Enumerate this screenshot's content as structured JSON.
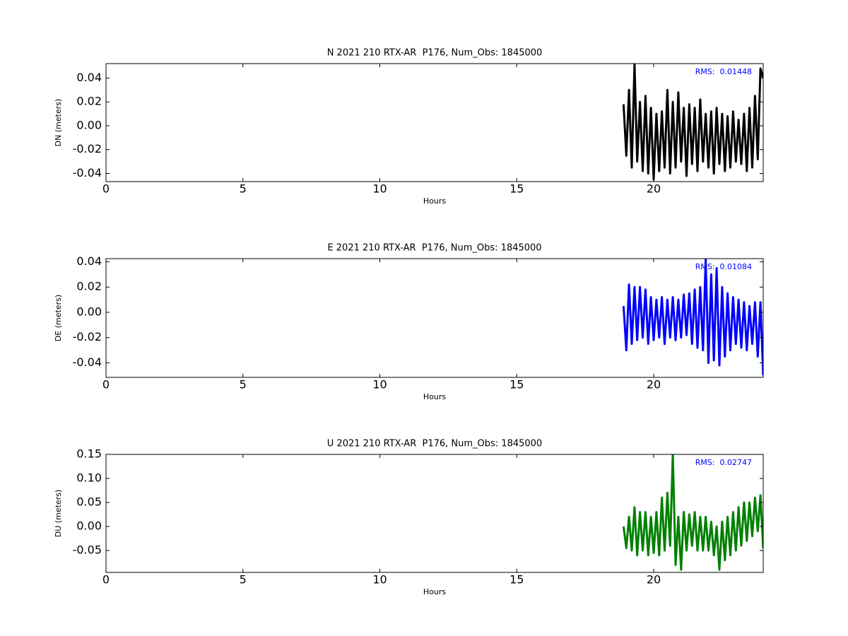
{
  "chart_data": [
    {
      "type": "line",
      "title": "N 2021 210 RTX-AR  P176, Num_Obs: 1845000",
      "x_label": "Hours",
      "y_label": "DN (meters)",
      "annotation": "RMS:  0.01448",
      "annotation_color": "#0000ff",
      "color": "#000000",
      "x": [
        18.9,
        19.0,
        19.1,
        19.2,
        19.3,
        19.4,
        19.5,
        19.6,
        19.7,
        19.8,
        19.9,
        20.0,
        20.1,
        20.2,
        20.3,
        20.4,
        20.5,
        20.6,
        20.7,
        20.8,
        20.9,
        21.0,
        21.1,
        21.2,
        21.3,
        21.4,
        21.5,
        21.6,
        21.7,
        21.8,
        21.9,
        22.0,
        22.1,
        22.2,
        22.3,
        22.4,
        22.5,
        22.6,
        22.7,
        22.8,
        22.9,
        23.0,
        23.1,
        23.2,
        23.3,
        23.4,
        23.5,
        23.6,
        23.7,
        23.8,
        23.9,
        24.0
      ],
      "values": [
        0.018,
        -0.025,
        0.03,
        -0.035,
        0.052,
        -0.03,
        0.02,
        -0.038,
        0.025,
        -0.04,
        0.015,
        -0.045,
        0.01,
        -0.038,
        0.012,
        -0.035,
        0.03,
        -0.04,
        0.02,
        -0.035,
        0.028,
        -0.03,
        0.015,
        -0.042,
        0.018,
        -0.032,
        0.015,
        -0.038,
        0.022,
        -0.03,
        0.01,
        -0.035,
        0.012,
        -0.04,
        0.015,
        -0.032,
        0.01,
        -0.038,
        0.008,
        -0.035,
        0.012,
        -0.03,
        0.005,
        -0.032,
        0.01,
        -0.038,
        0.015,
        -0.035,
        0.025,
        -0.028,
        0.048,
        0.04
      ],
      "xlim": [
        0,
        24
      ],
      "xticks": [
        0,
        5,
        10,
        15,
        20
      ],
      "ylim": [
        -0.0468,
        0.0521
      ],
      "yticks": [
        -0.04,
        -0.02,
        {
          "value": 0,
          "label": "0.00"
        },
        0.02,
        0.04
      ]
    },
    {
      "type": "line",
      "title": "E 2021 210 RTX-AR  P176, Num_Obs: 1845000",
      "x_label": "Hours",
      "y_label": "DE (meters)",
      "annotation": "RMS:  0.01084",
      "annotation_color": "#0000ff",
      "color": "#0000ff",
      "x": [
        18.9,
        19.0,
        19.1,
        19.2,
        19.3,
        19.4,
        19.5,
        19.6,
        19.7,
        19.8,
        19.9,
        20.0,
        20.1,
        20.2,
        20.3,
        20.4,
        20.5,
        20.6,
        20.7,
        20.8,
        20.9,
        21.0,
        21.1,
        21.2,
        21.3,
        21.4,
        21.5,
        21.6,
        21.7,
        21.8,
        21.9,
        22.0,
        22.1,
        22.2,
        22.3,
        22.4,
        22.5,
        22.6,
        22.7,
        22.8,
        22.9,
        23.0,
        23.1,
        23.2,
        23.3,
        23.4,
        23.5,
        23.6,
        23.7,
        23.8,
        23.9,
        24.0
      ],
      "values": [
        0.005,
        -0.03,
        0.022,
        -0.025,
        0.02,
        -0.022,
        0.02,
        -0.02,
        0.018,
        -0.025,
        0.012,
        -0.022,
        0.01,
        -0.02,
        0.012,
        -0.025,
        0.01,
        -0.02,
        0.012,
        -0.022,
        0.01,
        -0.02,
        0.014,
        -0.018,
        0.015,
        -0.025,
        0.018,
        -0.028,
        0.02,
        -0.03,
        0.042,
        -0.04,
        0.03,
        -0.038,
        0.035,
        -0.042,
        0.02,
        -0.035,
        0.015,
        -0.03,
        0.012,
        -0.025,
        0.01,
        -0.028,
        0.008,
        -0.03,
        0.005,
        -0.025,
        0.008,
        -0.035,
        0.008,
        -0.05
      ],
      "xlim": [
        0,
        24
      ],
      "xticks": [
        0,
        5,
        10,
        15,
        20
      ],
      "ylim": [
        -0.0515,
        0.0425
      ],
      "yticks": [
        -0.04,
        -0.02,
        {
          "value": 0,
          "label": "0.00"
        },
        0.02,
        0.04
      ]
    },
    {
      "type": "line",
      "title": "U 2021 210 RTX-AR  P176, Num_Obs: 1845000",
      "x_label": "Hours",
      "y_label": "DU (meters)",
      "annotation": "RMS:  0.02747",
      "annotation_color": "#0000ff",
      "color": "#008000",
      "x": [
        18.9,
        19.0,
        19.1,
        19.2,
        19.3,
        19.4,
        19.5,
        19.6,
        19.7,
        19.8,
        19.9,
        20.0,
        20.1,
        20.2,
        20.3,
        20.4,
        20.5,
        20.6,
        20.7,
        20.8,
        20.9,
        21.0,
        21.1,
        21.2,
        21.3,
        21.4,
        21.5,
        21.6,
        21.7,
        21.8,
        21.9,
        22.0,
        22.1,
        22.2,
        22.3,
        22.4,
        22.5,
        22.6,
        22.7,
        22.8,
        22.9,
        23.0,
        23.1,
        23.2,
        23.3,
        23.4,
        23.5,
        23.6,
        23.7,
        23.8,
        23.9,
        24.0
      ],
      "values": [
        0.0,
        -0.045,
        0.02,
        -0.05,
        0.04,
        -0.06,
        0.03,
        -0.05,
        0.03,
        -0.06,
        0.02,
        -0.055,
        0.03,
        -0.06,
        0.06,
        -0.05,
        0.07,
        -0.04,
        0.15,
        -0.08,
        0.02,
        -0.09,
        0.03,
        -0.05,
        0.025,
        -0.04,
        0.03,
        -0.05,
        0.02,
        -0.05,
        0.02,
        -0.05,
        0.01,
        -0.06,
        0.0,
        -0.09,
        0.01,
        -0.07,
        0.02,
        -0.06,
        0.03,
        -0.05,
        0.04,
        -0.04,
        0.05,
        -0.03,
        0.05,
        -0.02,
        0.06,
        -0.01,
        0.065,
        -0.045
      ],
      "xlim": [
        0,
        24
      ],
      "xticks": [
        0,
        5,
        10,
        15,
        20
      ],
      "ylim": [
        -0.0956,
        0.15
      ],
      "yticks": [
        -0.05,
        {
          "value": 0,
          "label": "0.00"
        },
        0.05,
        {
          "value": 0.1,
          "label": "0.10"
        },
        0.15
      ]
    }
  ]
}
